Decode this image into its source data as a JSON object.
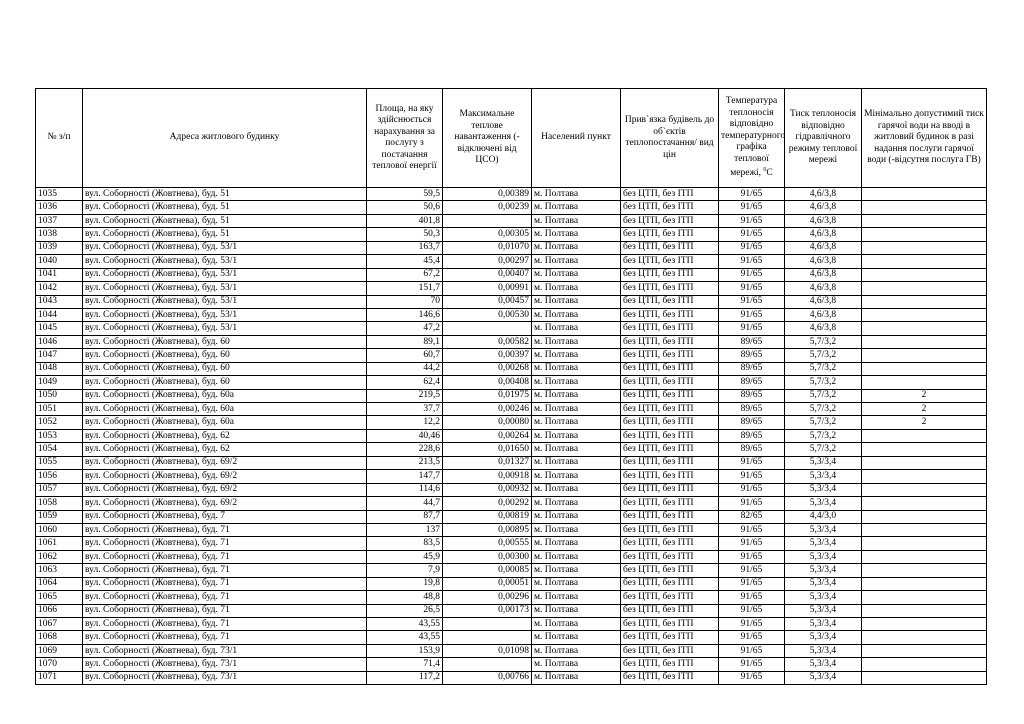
{
  "headers": {
    "num": "№ з/п",
    "address": "Адреса житлового будинку",
    "area": "Площа, на яку здійснюється нарахування за послугу з постачання теплової енергії",
    "load": "Максимальне теплове навантаження (-відключені від ЦСО)",
    "settlement": "Населений пункт",
    "binding": "Прив`язка будівель до об`єктів теплопостачання/ вид цін",
    "temp": "Температура теплоносія відповідно температурного графіка теплової мережі, ",
    "temp_unit_sup": "0",
    "temp_unit": "C",
    "pressure": "Тиск теплоносія відповідно гідравлічного режиму теплової мережі",
    "min_pressure": "Мінімально допустимий тиск гарячої води на вводі в житловий будинок в разі надання послуги гарячої води (-відсутня послуга ГВ)"
  },
  "rows": [
    [
      "1035",
      "вул. Соборності (Жовтнева), буд. 51",
      "59,5",
      "0,00389",
      "м. Полтава",
      "без ЦТП, без ІТП",
      "91/65",
      "4,6/3,8",
      ""
    ],
    [
      "1036",
      "вул. Соборності (Жовтнева), буд. 51",
      "50,6",
      "0,00239",
      "м. Полтава",
      "без ЦТП, без ІТП",
      "91/65",
      "4,6/3,8",
      ""
    ],
    [
      "1037",
      "вул. Соборності (Жовтнева), буд. 51",
      "401,8",
      "",
      "м. Полтава",
      "без ЦТП, без ІТП",
      "91/65",
      "4,6/3,8",
      ""
    ],
    [
      "1038",
      "вул. Соборності (Жовтнева), буд. 51",
      "50,3",
      "0,00305",
      "м. Полтава",
      "без ЦТП, без ІТП",
      "91/65",
      "4,6/3,8",
      ""
    ],
    [
      "1039",
      "вул. Соборності (Жовтнева), буд. 53/1",
      "163,7",
      "0,01070",
      "м. Полтава",
      "без ЦТП, без ІТП",
      "91/65",
      "4,6/3,8",
      ""
    ],
    [
      "1040",
      "вул. Соборності (Жовтнева), буд. 53/1",
      "45,4",
      "0,00297",
      "м. Полтава",
      "без ЦТП, без ІТП",
      "91/65",
      "4,6/3,8",
      ""
    ],
    [
      "1041",
      "вул. Соборності (Жовтнева), буд. 53/1",
      "67,2",
      "0,00407",
      "м. Полтава",
      "без ЦТП, без ІТП",
      "91/65",
      "4,6/3,8",
      ""
    ],
    [
      "1042",
      "вул. Соборності (Жовтнева), буд. 53/1",
      "151,7",
      "0,00991",
      "м. Полтава",
      "без ЦТП, без ІТП",
      "91/65",
      "4,6/3,8",
      ""
    ],
    [
      "1043",
      "вул. Соборності (Жовтнева), буд. 53/1",
      "70",
      "0,00457",
      "м. Полтава",
      "без ЦТП, без ІТП",
      "91/65",
      "4,6/3,8",
      ""
    ],
    [
      "1044",
      "вул. Соборності (Жовтнева), буд. 53/1",
      "146,6",
      "0,00530",
      "м. Полтава",
      "без ЦТП, без ІТП",
      "91/65",
      "4,6/3,8",
      ""
    ],
    [
      "1045",
      "вул. Соборності (Жовтнева), буд. 53/1",
      "47,2",
      "",
      "м. Полтава",
      "без ЦТП, без ІТП",
      "91/65",
      "4,6/3,8",
      ""
    ],
    [
      "1046",
      "вул. Соборності (Жовтнева), буд. 60",
      "89,1",
      "0,00582",
      "м. Полтава",
      "без ЦТП, без ІТП",
      "89/65",
      "5,7/3,2",
      ""
    ],
    [
      "1047",
      "вул. Соборності (Жовтнева), буд. 60",
      "60,7",
      "0,00397",
      "м. Полтава",
      "без ЦТП, без ІТП",
      "89/65",
      "5,7/3,2",
      ""
    ],
    [
      "1048",
      "вул. Соборності (Жовтнева), буд. 60",
      "44,2",
      "0,00268",
      "м. Полтава",
      "без ЦТП, без ІТП",
      "89/65",
      "5,7/3,2",
      ""
    ],
    [
      "1049",
      "вул. Соборності (Жовтнева), буд. 60",
      "62,4",
      "0,00408",
      "м. Полтава",
      "без ЦТП, без ІТП",
      "89/65",
      "5,7/3,2",
      ""
    ],
    [
      "1050",
      "вул. Соборності (Жовтнева), буд. 60а",
      "219,5",
      "0,01975",
      "м. Полтава",
      "без ЦТП, без ІТП",
      "89/65",
      "5,7/3,2",
      "2"
    ],
    [
      "1051",
      "вул. Соборності (Жовтнева), буд. 60а",
      "37,7",
      "0,00246",
      "м. Полтава",
      "без ЦТП, без ІТП",
      "89/65",
      "5,7/3,2",
      "2"
    ],
    [
      "1052",
      "вул. Соборності (Жовтнева), буд. 60а",
      "12,2",
      "0,00080",
      "м. Полтава",
      "без ЦТП, без ІТП",
      "89/65",
      "5,7/3,2",
      "2"
    ],
    [
      "1053",
      "вул. Соборності (Жовтнева), буд. 62",
      "40,46",
      "0,00264",
      "м. Полтава",
      "без ЦТП, без ІТП",
      "89/65",
      "5,7/3,2",
      ""
    ],
    [
      "1054",
      "вул. Соборності (Жовтнева), буд. 62",
      "228,6",
      "0,01650",
      "м. Полтава",
      "без ЦТП, без ІТП",
      "89/65",
      "5,7/3,2",
      ""
    ],
    [
      "1055",
      "вул. Соборності (Жовтнева), буд. 69/2",
      "213,5",
      "0,01327",
      "м. Полтава",
      "без ЦТП, без ІТП",
      "91/65",
      "5,3/3,4",
      ""
    ],
    [
      "1056",
      "вул. Соборності (Жовтнева), буд. 69/2",
      "147,7",
      "0,00918",
      "м. Полтава",
      "без ЦТП, без ІТП",
      "91/65",
      "5,3/3,4",
      ""
    ],
    [
      "1057",
      "вул. Соборності (Жовтнева), буд. 69/2",
      "114,6",
      "0,00932",
      "м. Полтава",
      "без ЦТП, без ІТП",
      "91/65",
      "5,3/3,4",
      ""
    ],
    [
      "1058",
      "вул. Соборності (Жовтнева), буд. 69/2",
      "44,7",
      "0,00292",
      "м. Полтава",
      "без ЦТП, без ІТП",
      "91/65",
      "5,3/3,4",
      ""
    ],
    [
      "1059",
      "вул. Соборності (Жовтнева), буд. 7",
      "87,7",
      "0,00819",
      "м. Полтава",
      "без ЦТП, без ІТП",
      "82/65",
      "4,4/3,0",
      ""
    ],
    [
      "1060",
      "вул. Соборності (Жовтнева), буд. 71",
      "137",
      "0,00895",
      "м. Полтава",
      "без ЦТП, без ІТП",
      "91/65",
      "5,3/3,4",
      ""
    ],
    [
      "1061",
      "вул. Соборності (Жовтнева), буд. 71",
      "83,5",
      "0,00555",
      "м. Полтава",
      "без ЦТП, без ІТП",
      "91/65",
      "5,3/3,4",
      ""
    ],
    [
      "1062",
      "вул. Соборності (Жовтнева), буд. 71",
      "45,9",
      "0,00300",
      "м. Полтава",
      "без ЦТП, без ІТП",
      "91/65",
      "5,3/3,4",
      ""
    ],
    [
      "1063",
      "вул. Соборності (Жовтнева), буд. 71",
      "7,9",
      "0,00085",
      "м. Полтава",
      "без ЦТП, без ІТП",
      "91/65",
      "5,3/3,4",
      ""
    ],
    [
      "1064",
      "вул. Соборності (Жовтнева), буд. 71",
      "19,8",
      "0,00051",
      "м. Полтава",
      "без ЦТП, без ІТП",
      "91/65",
      "5,3/3,4",
      ""
    ],
    [
      "1065",
      "вул. Соборності (Жовтнева), буд. 71",
      "48,8",
      "0,00296",
      "м. Полтава",
      "без ЦТП, без ІТП",
      "91/65",
      "5,3/3,4",
      ""
    ],
    [
      "1066",
      "вул. Соборності (Жовтнева), буд. 71",
      "26,5",
      "0,00173",
      "м. Полтава",
      "без ЦТП, без ІТП",
      "91/65",
      "5,3/3,4",
      ""
    ],
    [
      "1067",
      "вул. Соборності (Жовтнева), буд. 71",
      "43,55",
      "",
      "м. Полтава",
      "без ЦТП, без ІТП",
      "91/65",
      "5,3/3,4",
      ""
    ],
    [
      "1068",
      "вул. Соборності (Жовтнева), буд. 71",
      "43,55",
      "",
      "м. Полтава",
      "без ЦТП, без ІТП",
      "91/65",
      "5,3/3,4",
      ""
    ],
    [
      "1069",
      "вул. Соборності (Жовтнева), буд. 73/1",
      "153,9",
      "0,01098",
      "м. Полтава",
      "без ЦТП, без ІТП",
      "91/65",
      "5,3/3,4",
      ""
    ],
    [
      "1070",
      "вул. Соборності (Жовтнева), буд. 73/1",
      "71,4",
      "",
      "м. Полтава",
      "без ЦТП, без ІТП",
      "91/65",
      "5,3/3,4",
      ""
    ],
    [
      "1071",
      "вул. Соборності (Жовтнева), буд. 73/1",
      "117,2",
      "0,00766",
      "м. Полтава",
      "без ЦТП, без ІТП",
      "91/65",
      "5,3/3,4",
      ""
    ]
  ]
}
